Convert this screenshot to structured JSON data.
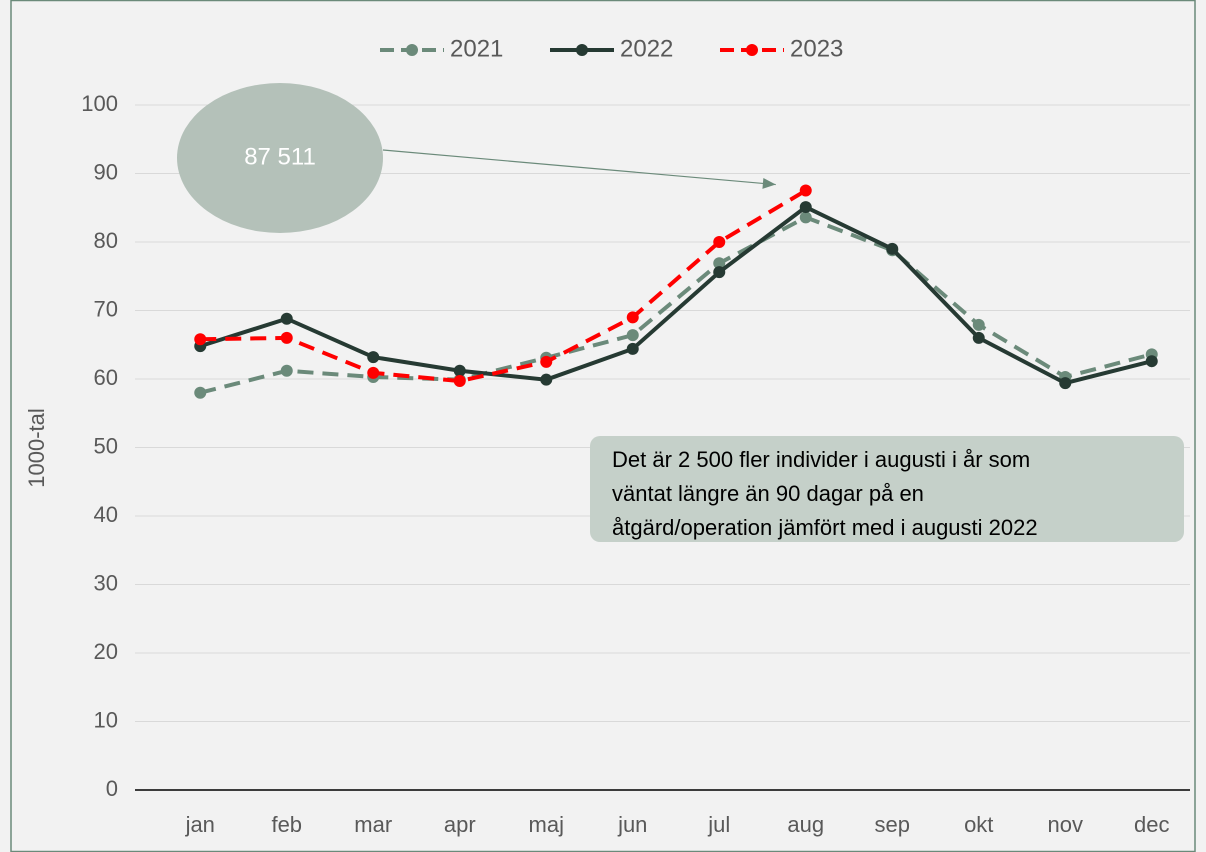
{
  "chart_data": {
    "type": "line",
    "ylabel": "1000-tal",
    "categories": [
      "jan",
      "feb",
      "mar",
      "apr",
      "maj",
      "jun",
      "jul",
      "aug",
      "sep",
      "okt",
      "nov",
      "dec"
    ],
    "series": [
      {
        "name": "2021",
        "color": "#6b8a7a",
        "dashed": true,
        "values": [
          58.0,
          61.2,
          60.3,
          59.9,
          63.1,
          66.4,
          76.9,
          83.6,
          78.8,
          67.9,
          60.3,
          63.6
        ]
      },
      {
        "name": "2022",
        "color": "#263a33",
        "dashed": false,
        "values": [
          64.8,
          68.8,
          63.2,
          61.2,
          59.9,
          64.4,
          75.6,
          85.1,
          79.0,
          66.0,
          59.4,
          62.6
        ]
      },
      {
        "name": "2023",
        "color": "#ff0000",
        "dashed": true,
        "values": [
          65.8,
          66.0,
          60.9,
          59.7,
          62.5,
          69.0,
          80.0,
          87.511,
          null,
          null,
          null,
          null
        ]
      }
    ],
    "ylim": [
      0,
      100
    ],
    "yticks": [
      0,
      10,
      20,
      30,
      40,
      50,
      60,
      70,
      80,
      90,
      100
    ],
    "grid": true,
    "legend": "top",
    "callout": {
      "label": "87 511",
      "target": "chart_data.series.2.values.7"
    },
    "annotation": [
      "Det är 2 500 fler individer i augusti i år som",
      "väntat längre än 90 dagar på en",
      "åtgärd/operation jämfört med i augusti 2022"
    ]
  }
}
